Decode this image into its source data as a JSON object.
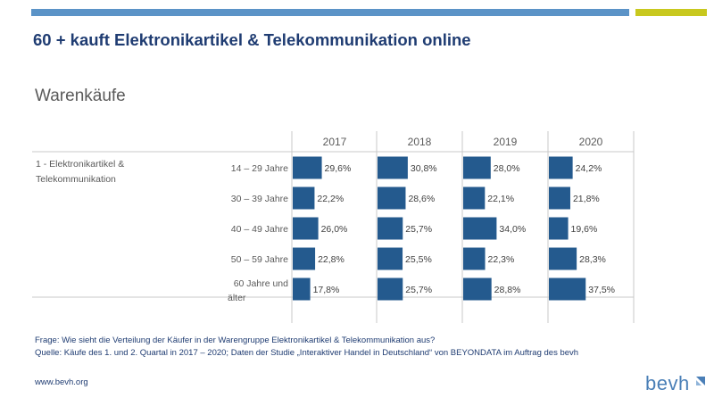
{
  "colors": {
    "bar": "#245a8e",
    "title": "#1f3c72",
    "grid": "#c8c8c8",
    "top_blue": "#5b93c7",
    "top_yellow": "#c8c81e",
    "logo": "#4a7fb7"
  },
  "page": {
    "title": "60 + kauft Elektronikartikel & Telekommunikation online",
    "subtitle": "Warenkäufe"
  },
  "chart_data": {
    "type": "bar",
    "orientation": "horizontal",
    "category_group": "1 - Elektronikartikel & Telekommunikation",
    "categories": [
      "14 – 29 Jahre",
      "30 – 39 Jahre",
      "40 – 49 Jahre",
      "50 – 59 Jahre",
      "60 Jahre und älter"
    ],
    "panels": [
      {
        "year": "2017",
        "values": [
          29.6,
          22.2,
          26.0,
          22.8,
          17.8
        ],
        "labels": [
          "29,6%",
          "22,2%",
          "26,0%",
          "22,8%",
          "17,8%"
        ]
      },
      {
        "year": "2018",
        "values": [
          30.8,
          28.6,
          25.7,
          25.5,
          25.7
        ],
        "labels": [
          "30,8%",
          "28,6%",
          "25,7%",
          "25,5%",
          "25,7%"
        ]
      },
      {
        "year": "2019",
        "values": [
          28.0,
          22.1,
          34.0,
          22.3,
          28.8
        ],
        "labels": [
          "28,0%",
          "22,1%",
          "34,0%",
          "22,3%",
          "28,8%"
        ]
      },
      {
        "year": "2020",
        "values": [
          24.2,
          21.8,
          19.6,
          28.3,
          37.5
        ],
        "labels": [
          "24,2%",
          "21,8%",
          "19,6%",
          "28,3%",
          "37,5%"
        ]
      }
    ]
  },
  "footer": {
    "question": "Frage: Wie sieht die Verteilung der Käufer in der Warengruppe Elektronikartikel & Telekommunikation aus?",
    "source": "Quelle: Käufe des 1. und 2. Quartal in 2017 – 2020; Daten der Studie „Interaktiver Handel in Deutschland“ von BEYONDATA im Auftrag des bevh",
    "url": "www.bevh.org"
  },
  "logo": {
    "text": "bevh"
  }
}
